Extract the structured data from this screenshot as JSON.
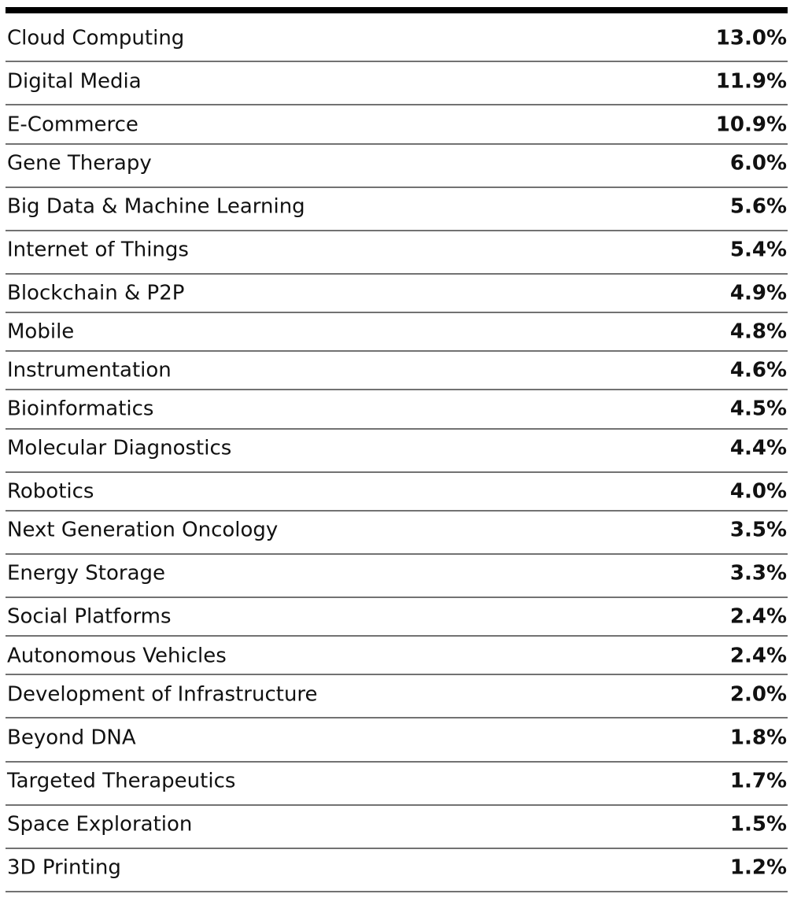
{
  "table": {
    "rows": [
      [
        "Cloud Computing",
        "13.0%"
      ],
      [
        "Digital Media",
        "11.9%"
      ],
      [
        "E-Commerce",
        "10.9%"
      ],
      [
        "Gene Therapy",
        "6.0%"
      ],
      [
        "Big Data & Machine Learning",
        "5.6%"
      ],
      [
        "Internet of Things",
        "5.4%"
      ],
      [
        "Blockchain & P2P",
        "4.9%"
      ],
      [
        "Mobile",
        "4.8%"
      ],
      [
        "Instrumentation",
        "4.6%"
      ],
      [
        "Bioinformatics",
        "4.5%"
      ],
      [
        "Molecular Diagnostics",
        "4.4%"
      ],
      [
        "Robotics",
        "4.0%"
      ],
      [
        "Next Generation Oncology",
        "3.5%"
      ],
      [
        "Energy Storage",
        "3.3%"
      ],
      [
        "Social Platforms",
        "2.4%"
      ],
      [
        "Autonomous Vehicles",
        "2.4%"
      ],
      [
        "Development of Infrastructure",
        "2.0%"
      ],
      [
        "Beyond DNA",
        "1.8%"
      ],
      [
        "Targeted Therapeutics",
        "1.7%"
      ],
      [
        "Space Exploration",
        "1.5%"
      ],
      [
        "3D Printing",
        "1.2%"
      ]
    ]
  }
}
